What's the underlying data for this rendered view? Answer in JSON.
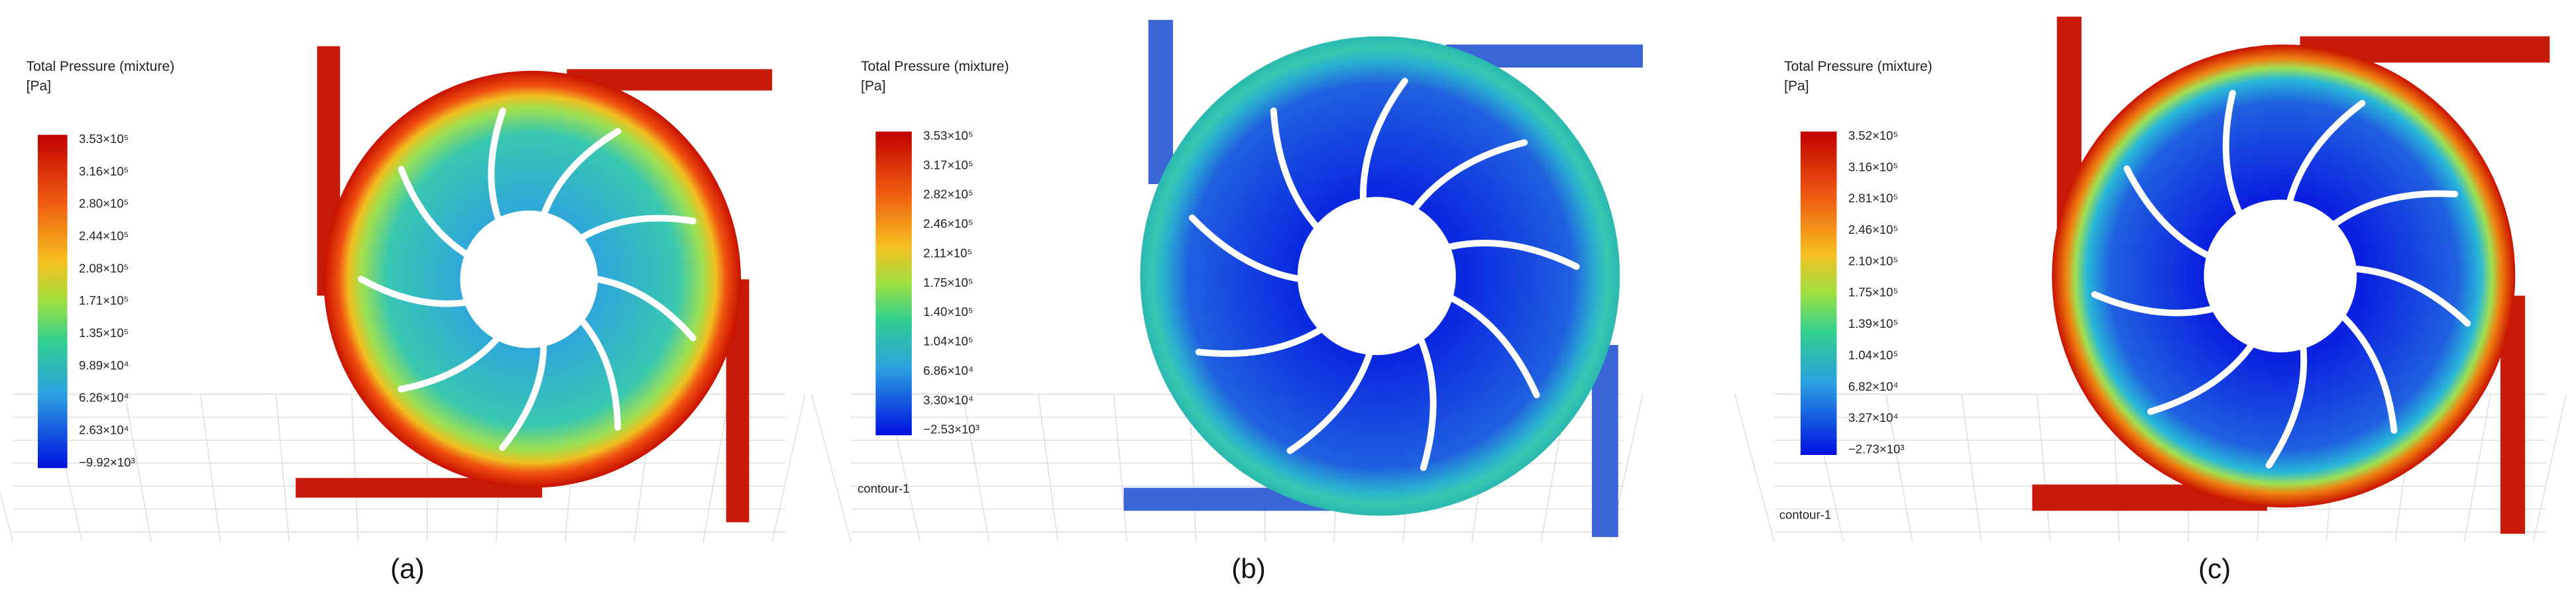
{
  "panels": [
    {
      "caption": "(a)",
      "legend": {
        "title": "Total Pressure (mixture)",
        "unit": "[Pa]",
        "ticks": [
          "3.53×10⁵",
          "3.16×10⁵",
          "2.80×10⁵",
          "2.44×10⁵",
          "2.08×10⁵",
          "1.71×10⁵",
          "1.35×10⁵",
          "9.89×10⁴",
          "6.26×10⁴",
          "2.63×10⁴",
          "−9.92×10³"
        ]
      }
    },
    {
      "caption": "(b)",
      "legend": {
        "title": "Total Pressure (mixture)",
        "unit": "[Pa]",
        "ticks": [
          "3.53×10⁵",
          "3.17×10⁵",
          "2.82×10⁵",
          "2.46×10⁵",
          "2.11×10⁵",
          "1.75×10⁵",
          "1.40×10⁵",
          "1.04×10⁵",
          "6.86×10⁴",
          "3.30×10⁴",
          "−2.53×10³"
        ]
      },
      "label": "contour-1"
    },
    {
      "caption": "(c)",
      "legend": {
        "title": "Total Pressure (mixture)",
        "unit": "[Pa]",
        "ticks": [
          "3.52×10⁵",
          "3.16×10⁵",
          "2.81×10⁵",
          "2.46×10⁵",
          "2.10×10⁵",
          "1.75×10⁵",
          "1.39×10⁵",
          "1.04×10⁵",
          "6.82×10⁴",
          "3.27×10⁴",
          "−2.73×10³"
        ]
      },
      "label": "contour-1"
    }
  ]
}
